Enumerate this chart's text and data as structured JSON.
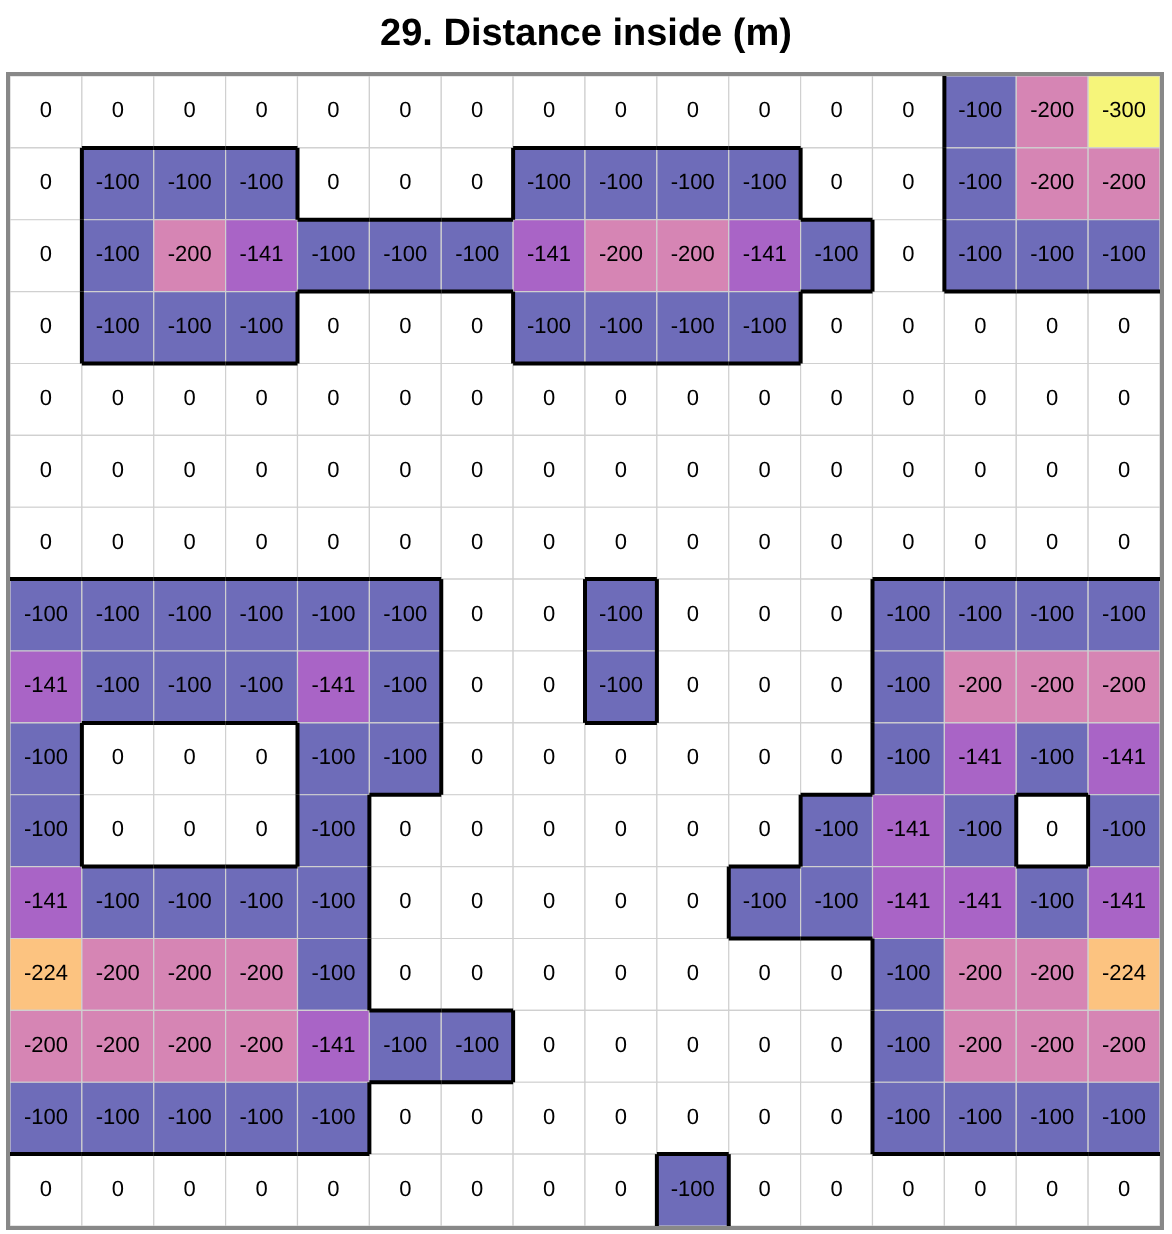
{
  "chart_data": {
    "type": "heatmap",
    "title": "29. Distance inside (m)",
    "categories": [
      null,
      null,
      null,
      null,
      null,
      null,
      null,
      null,
      null,
      null,
      null,
      null,
      null,
      null,
      null,
      null
    ],
    "y_categories": [
      null,
      null,
      null,
      null,
      null,
      null,
      null,
      null,
      null,
      null,
      null,
      null,
      null,
      null,
      null,
      null
    ],
    "data_labels": true,
    "cells": [
      [
        0,
        0,
        0,
        0,
        0,
        0,
        0,
        0,
        0,
        0,
        0,
        0,
        0,
        -100,
        -200,
        -300
      ],
      [
        0,
        -100,
        -100,
        -100,
        0,
        0,
        0,
        -100,
        -100,
        -100,
        -100,
        0,
        0,
        -100,
        -200,
        -200
      ],
      [
        0,
        -100,
        -200,
        -141,
        -100,
        -100,
        -100,
        -141,
        -200,
        -200,
        -141,
        -100,
        0,
        -100,
        -100,
        -100
      ],
      [
        0,
        -100,
        -100,
        -100,
        0,
        0,
        0,
        -100,
        -100,
        -100,
        -100,
        0,
        0,
        0,
        0,
        0
      ],
      [
        0,
        0,
        0,
        0,
        0,
        0,
        0,
        0,
        0,
        0,
        0,
        0,
        0,
        0,
        0,
        0
      ],
      [
        0,
        0,
        0,
        0,
        0,
        0,
        0,
        0,
        0,
        0,
        0,
        0,
        0,
        0,
        0,
        0
      ],
      [
        0,
        0,
        0,
        0,
        0,
        0,
        0,
        0,
        0,
        0,
        0,
        0,
        0,
        0,
        0,
        0
      ],
      [
        -100,
        -100,
        -100,
        -100,
        -100,
        -100,
        0,
        0,
        -100,
        0,
        0,
        0,
        -100,
        -100,
        -100,
        -100
      ],
      [
        -141,
        -100,
        -100,
        -100,
        -141,
        -100,
        0,
        0,
        -100,
        0,
        0,
        0,
        -100,
        -200,
        -200,
        -200
      ],
      [
        -100,
        0,
        0,
        0,
        -100,
        -100,
        0,
        0,
        0,
        0,
        0,
        0,
        -100,
        -141,
        -100,
        -141
      ],
      [
        -100,
        0,
        0,
        0,
        -100,
        0,
        0,
        0,
        0,
        0,
        0,
        -100,
        -141,
        -100,
        0,
        -100
      ],
      [
        -141,
        -100,
        -100,
        -100,
        -100,
        0,
        0,
        0,
        0,
        0,
        -100,
        -100,
        -141,
        -141,
        -100,
        -141
      ],
      [
        -224,
        -200,
        -200,
        -200,
        -100,
        0,
        0,
        0,
        0,
        0,
        0,
        0,
        -100,
        -200,
        -200,
        -224
      ],
      [
        -200,
        -200,
        -200,
        -200,
        -141,
        -100,
        -100,
        0,
        0,
        0,
        0,
        0,
        -100,
        -200,
        -200,
        -200
      ],
      [
        -100,
        -100,
        -100,
        -100,
        -100,
        0,
        0,
        0,
        0,
        0,
        0,
        0,
        -100,
        -100,
        -100,
        -100
      ],
      [
        0,
        0,
        0,
        0,
        0,
        0,
        0,
        0,
        0,
        -100,
        0,
        0,
        0,
        0,
        0,
        0
      ]
    ]
  }
}
